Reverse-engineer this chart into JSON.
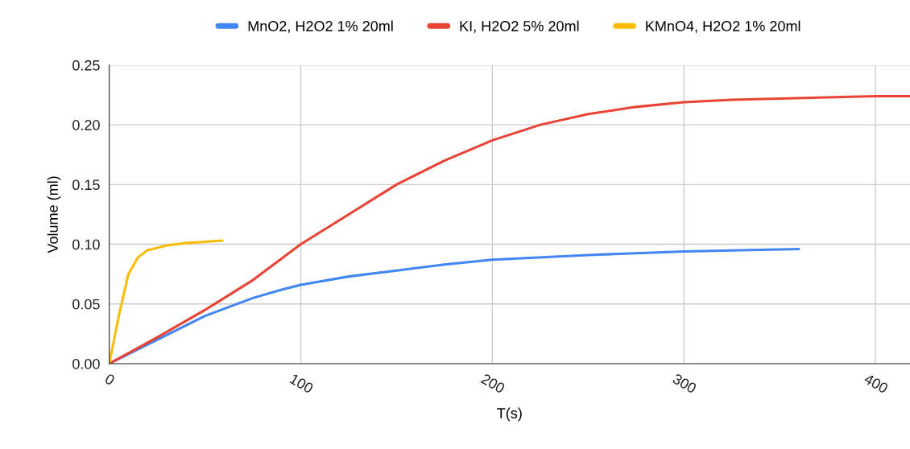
{
  "chart_data": {
    "type": "line",
    "xlabel": "T(s)",
    "ylabel": "Volume (ml)",
    "xlim": [
      0,
      418
    ],
    "xticks": [
      0,
      100,
      200,
      300,
      400
    ],
    "ylim": [
      0,
      0.25
    ],
    "yticks": [
      {
        "value": 0,
        "label": "0.00"
      },
      {
        "value": 0.05,
        "label": "0.05"
      },
      {
        "value": 0.1,
        "label": "0.10"
      },
      {
        "value": 0.15,
        "label": "0.15"
      },
      {
        "value": 0.2,
        "label": "0.20"
      },
      {
        "value": 0.25,
        "label": "0.25"
      }
    ],
    "grid": true,
    "legend": "top",
    "marker": "none",
    "line_style": "solid",
    "series": [
      {
        "name": "MnO2, H2O2 1% 20ml",
        "color": "#4285f4",
        "x": [
          0,
          50,
          75,
          90,
          100,
          125,
          150,
          175,
          200,
          250,
          300,
          360
        ],
        "values": [
          0,
          0.04,
          0.055,
          0.062,
          0.066,
          0.073,
          0.078,
          0.083,
          0.087,
          0.091,
          0.094,
          0.096
        ]
      },
      {
        "name": "KI, H2O2 5% 20ml",
        "color": "#ea4335",
        "x": [
          0,
          25,
          50,
          75,
          100,
          125,
          150,
          175,
          200,
          225,
          250,
          275,
          300,
          325,
          350,
          375,
          400,
          418
        ],
        "values": [
          0,
          0.022,
          0.045,
          0.07,
          0.1,
          0.125,
          0.15,
          0.17,
          0.187,
          0.2,
          0.209,
          0.215,
          0.219,
          0.221,
          0.222,
          0.223,
          0.224,
          0.224
        ]
      },
      {
        "name": "KMnO4, H2O2 1% 20ml",
        "color": "#fbbc04",
        "x": [
          0,
          5,
          10,
          15,
          20,
          30,
          40,
          59
        ],
        "values": [
          0,
          0.04,
          0.075,
          0.089,
          0.095,
          0.099,
          0.101,
          0.103
        ]
      }
    ]
  }
}
